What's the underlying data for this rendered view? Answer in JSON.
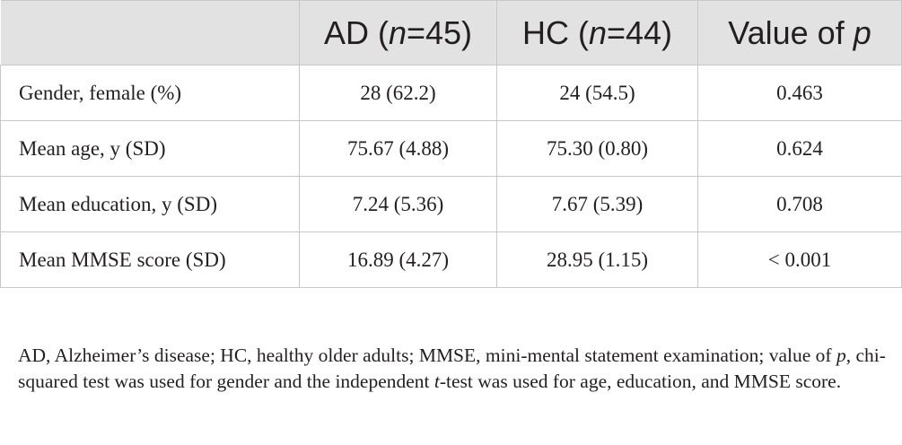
{
  "table": {
    "header": {
      "col0": "",
      "ad": {
        "prefix": "AD (",
        "var": "n",
        "suffix": "=45)"
      },
      "hc": {
        "prefix": "HC (",
        "var": "n",
        "suffix": "=44)"
      },
      "p": {
        "prefix": "Value of ",
        "var": "p"
      }
    },
    "rows": [
      {
        "label": "Gender, female (%)",
        "ad": "28 (62.2)",
        "hc": "24 (54.5)",
        "p": "0.463"
      },
      {
        "label": "Mean age, y (SD)",
        "ad": "75.67 (4.88)",
        "hc": "75.30 (0.80)",
        "p": "0.624"
      },
      {
        "label": "Mean education, y (SD)",
        "ad": "7.24 (5.36)",
        "hc": "7.67 (5.39)",
        "p": "0.708"
      },
      {
        "label": "Mean MMSE score (SD)",
        "ad": "16.89 (4.27)",
        "hc": "28.95 (1.15)",
        "p": "< 0.001"
      }
    ]
  },
  "footnote": {
    "part1": "AD, Alzheimer’s disease; HC, healthy older adults; MMSE, mini-mental statement examination; value of ",
    "p_var": "p",
    "part2": ", chi-squared test was used for gender and the independent ",
    "t_var": "t",
    "part3": "-test was used for age, education, and MMSE score."
  }
}
